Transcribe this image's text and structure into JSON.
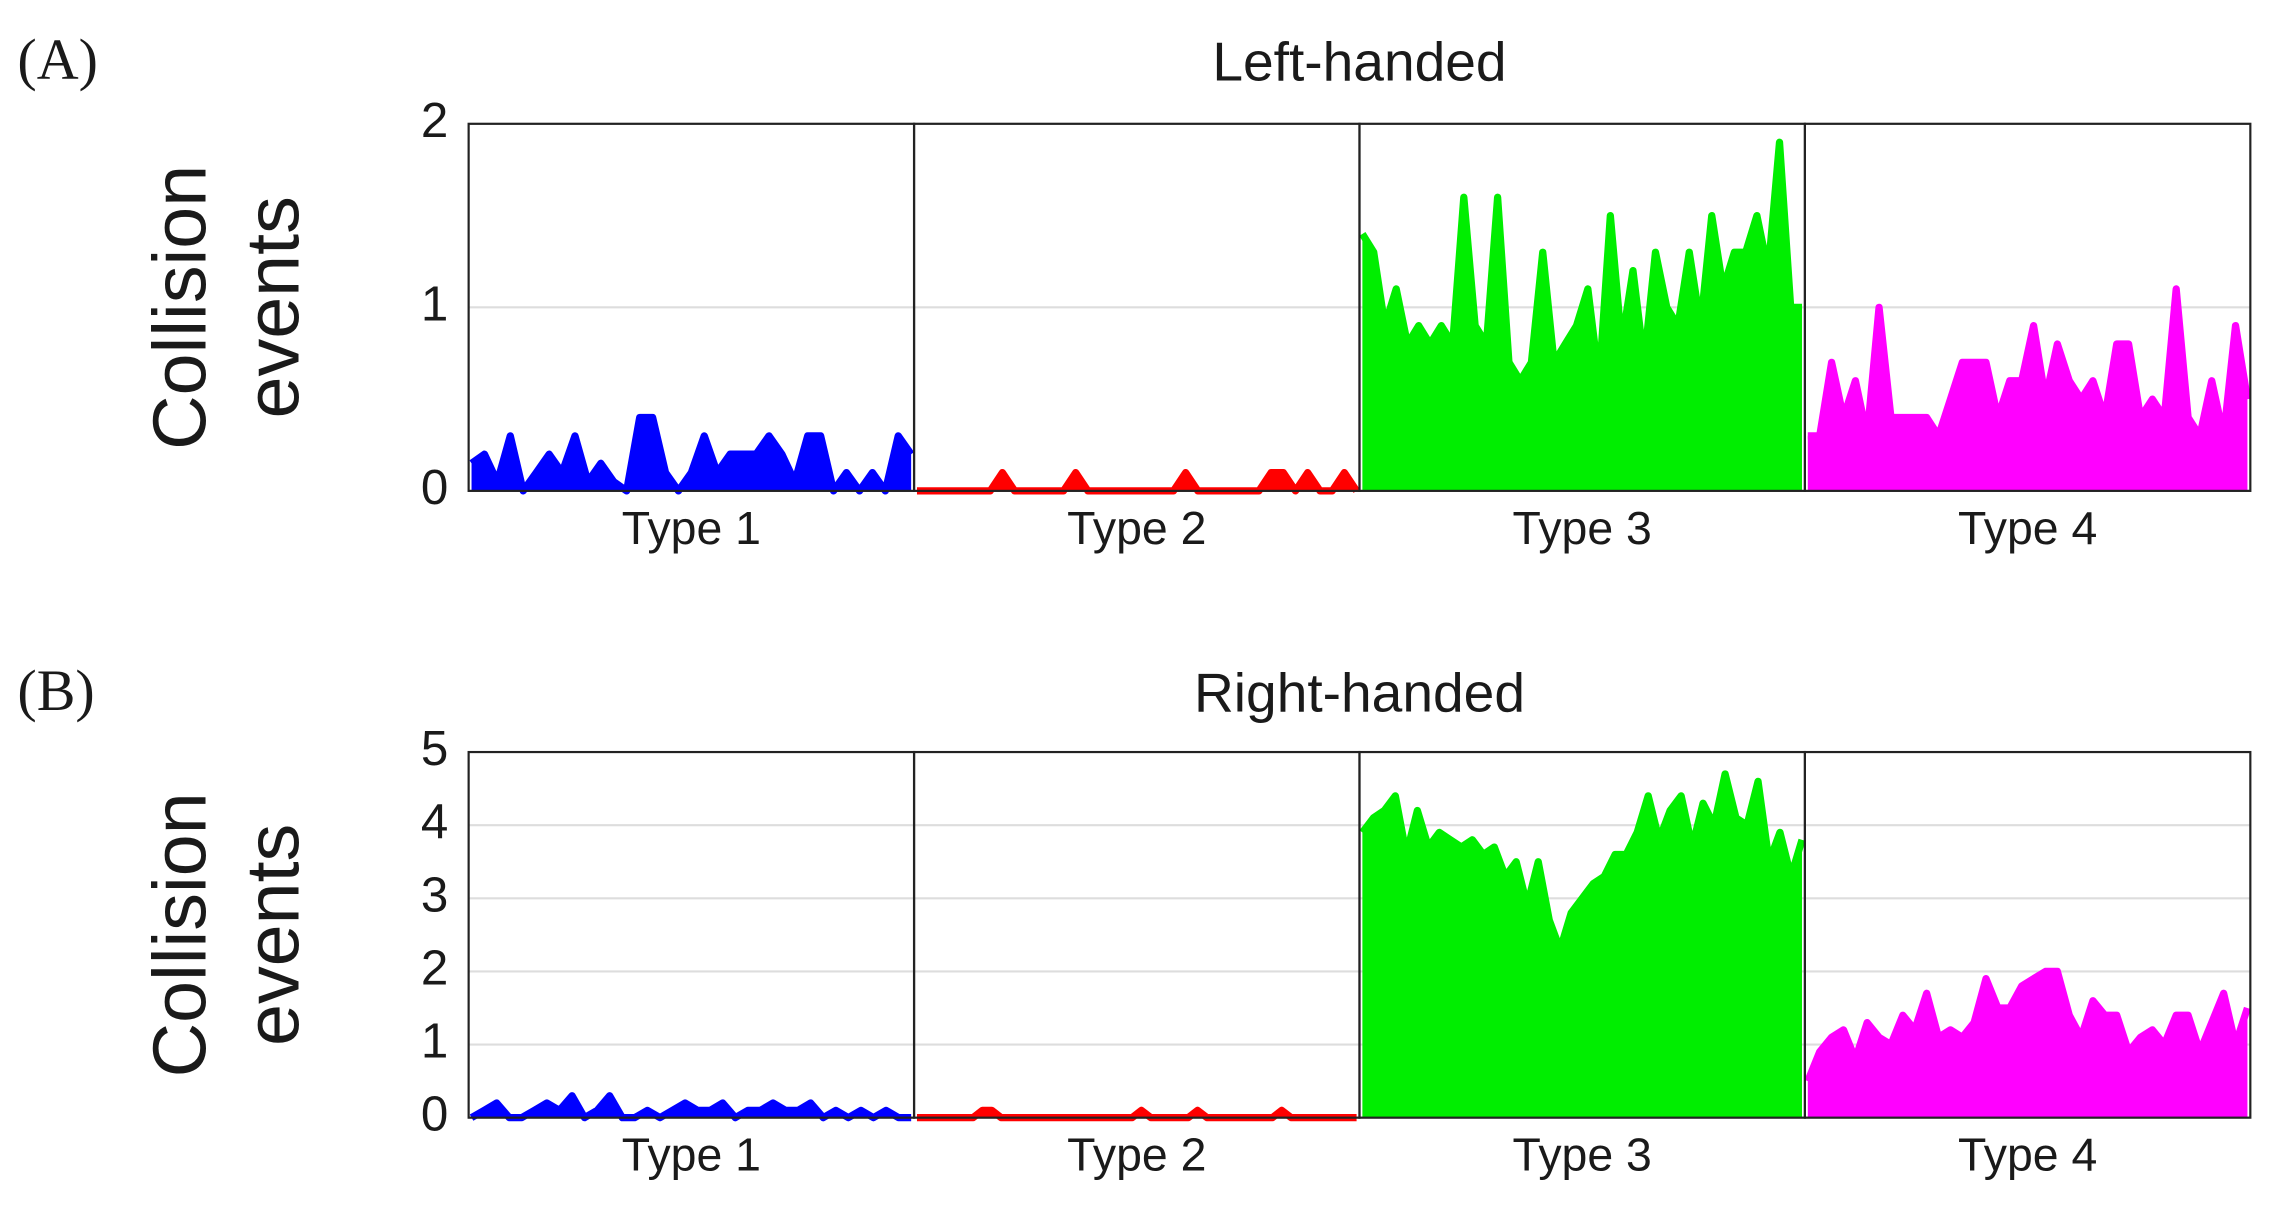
{
  "chart_data": [
    {
      "type": "area",
      "panel_label": "(A)",
      "title": "Left-handed",
      "ylabel": [
        "Collision",
        "events"
      ],
      "ylim": [
        0,
        2
      ],
      "yticks": [
        0,
        1,
        2
      ],
      "grid": true,
      "panels": [
        {
          "label": "Type 1",
          "color": "#0000ff",
          "values": [
            0.15,
            0.2,
            0.05,
            0.3,
            0,
            0.1,
            0.2,
            0.1,
            0.3,
            0.05,
            0.15,
            0.05,
            0,
            0.4,
            0.4,
            0.1,
            0,
            0.1,
            0.3,
            0.1,
            0.2,
            0.2,
            0.2,
            0.3,
            0.2,
            0.05,
            0.3,
            0.3,
            0,
            0.1,
            0,
            0.1,
            0,
            0.3,
            0.2
          ]
        },
        {
          "label": "Type 2",
          "color": "#ff0000",
          "values": [
            0,
            0,
            0,
            0,
            0,
            0,
            0,
            0.1,
            0,
            0,
            0,
            0,
            0,
            0.1,
            0,
            0,
            0,
            0,
            0,
            0,
            0,
            0,
            0.1,
            0,
            0,
            0,
            0,
            0,
            0,
            0.1,
            0.1,
            0,
            0.1,
            0,
            0,
            0.1,
            0
          ]
        },
        {
          "label": "Type 3",
          "color": "#00ee00",
          "values": [
            1.4,
            1.3,
            0.9,
            1.1,
            0.8,
            0.9,
            0.8,
            0.9,
            0.8,
            1.6,
            0.9,
            0.8,
            1.6,
            0.7,
            0.6,
            0.7,
            1.3,
            0.7,
            0.8,
            0.9,
            1.1,
            0.6,
            1.5,
            0.8,
            1.2,
            0.7,
            1.3,
            1.0,
            0.9,
            1.3,
            0.9,
            1.5,
            1.1,
            1.3,
            1.3,
            1.5,
            1.2,
            1.9,
            1.0,
            1.0
          ]
        },
        {
          "label": "Type 4",
          "color": "#ff00ff",
          "values": [
            0.3,
            0.3,
            0.7,
            0.4,
            0.6,
            0.3,
            1.0,
            0.4,
            0.4,
            0.4,
            0.4,
            0.3,
            0.5,
            0.7,
            0.7,
            0.7,
            0.4,
            0.6,
            0.6,
            0.9,
            0.5,
            0.8,
            0.6,
            0.5,
            0.6,
            0.4,
            0.8,
            0.8,
            0.4,
            0.5,
            0.4,
            1.1,
            0.4,
            0.3,
            0.6,
            0.3,
            0.9,
            0.5
          ]
        }
      ]
    },
    {
      "type": "area",
      "panel_label": "(B)",
      "title": "Right-handed",
      "ylabel": [
        "Collision",
        "events"
      ],
      "ylim": [
        0,
        5
      ],
      "yticks": [
        0,
        1,
        2,
        3,
        4,
        5
      ],
      "grid": true,
      "panels": [
        {
          "label": "Type 1",
          "color": "#0000ff",
          "values": [
            0,
            0.1,
            0.2,
            0,
            0,
            0.1,
            0.2,
            0.1,
            0.3,
            0,
            0.1,
            0.3,
            0,
            0,
            0.1,
            0,
            0.1,
            0.2,
            0.1,
            0.1,
            0.2,
            0,
            0.1,
            0.1,
            0.2,
            0.1,
            0.1,
            0.2,
            0,
            0.1,
            0,
            0.1,
            0,
            0.1,
            0,
            0
          ]
        },
        {
          "label": "Type 2",
          "color": "#ff0000",
          "values": [
            0,
            0,
            0,
            0,
            0,
            0,
            0,
            0.1,
            0.1,
            0,
            0,
            0,
            0,
            0,
            0,
            0,
            0,
            0,
            0,
            0,
            0,
            0,
            0,
            0,
            0.1,
            0,
            0,
            0,
            0,
            0,
            0.1,
            0,
            0,
            0,
            0,
            0,
            0,
            0,
            0,
            0.1,
            0,
            0,
            0,
            0,
            0,
            0,
            0,
            0
          ]
        },
        {
          "label": "Type 3",
          "color": "#00ee00",
          "values": [
            3.9,
            4.1,
            4.2,
            4.4,
            3.6,
            4.2,
            3.7,
            3.9,
            3.8,
            3.7,
            3.8,
            3.6,
            3.7,
            3.3,
            3.5,
            2.9,
            3.5,
            2.7,
            2.3,
            2.8,
            3.0,
            3.2,
            3.3,
            3.6,
            3.6,
            3.9,
            4.4,
            3.8,
            4.2,
            4.4,
            3.7,
            4.3,
            4.0,
            4.7,
            4.1,
            4.0,
            4.6,
            3.5,
            3.9,
            3.3,
            3.8
          ]
        },
        {
          "label": "Type 4",
          "color": "#ff00ff",
          "values": [
            0.5,
            0.9,
            1.1,
            1.2,
            0.8,
            1.3,
            1.1,
            1.0,
            1.4,
            1.2,
            1.7,
            1.1,
            1.2,
            1.1,
            1.3,
            1.9,
            1.5,
            1.5,
            1.8,
            1.9,
            2.0,
            2.0,
            1.4,
            1.1,
            1.6,
            1.4,
            1.4,
            0.9,
            1.1,
            1.2,
            1.0,
            1.4,
            1.4,
            0.9,
            1.3,
            1.7,
            1.0,
            1.5
          ]
        }
      ]
    }
  ]
}
